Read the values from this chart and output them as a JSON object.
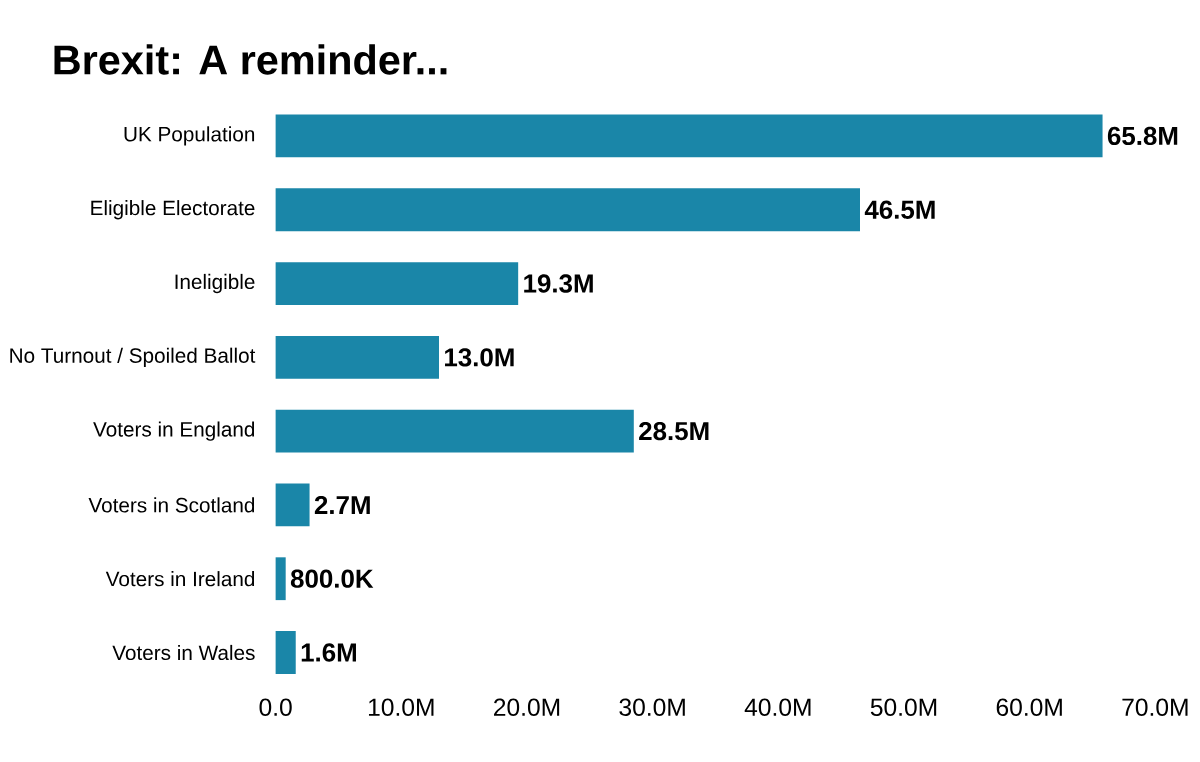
{
  "chart_data": {
    "type": "bar",
    "orientation": "horizontal",
    "title": "Brexit: A reminder...",
    "categories": [
      "UK Population",
      "Eligible Electorate",
      "Ineligible",
      "No Turnout / Spoiled Ballot",
      "Voters in England",
      "Voters in Scotland",
      "Voters in Ireland",
      "Voters in Wales"
    ],
    "values": [
      65800000,
      46500000,
      19300000,
      13000000,
      28500000,
      2700000,
      800000,
      1600000
    ],
    "value_labels": [
      "65.8M",
      "46.5M",
      "19.3M",
      "13.0M",
      "28.5M",
      "2.7M",
      "800.0K",
      "1.6M"
    ],
    "color": "#1a86a8",
    "xlim": [
      0,
      70000000
    ],
    "xticks": [
      {
        "value": 0,
        "label": "0.0"
      },
      {
        "value": 10000000,
        "label": "10.0M"
      },
      {
        "value": 20000000,
        "label": "20.0M"
      },
      {
        "value": 30000000,
        "label": "30.0M"
      },
      {
        "value": 40000000,
        "label": "40.0M"
      },
      {
        "value": 50000000,
        "label": "50.0M"
      },
      {
        "value": 60000000,
        "label": "60.0M"
      },
      {
        "value": 70000000,
        "label": "70.0M"
      }
    ]
  }
}
